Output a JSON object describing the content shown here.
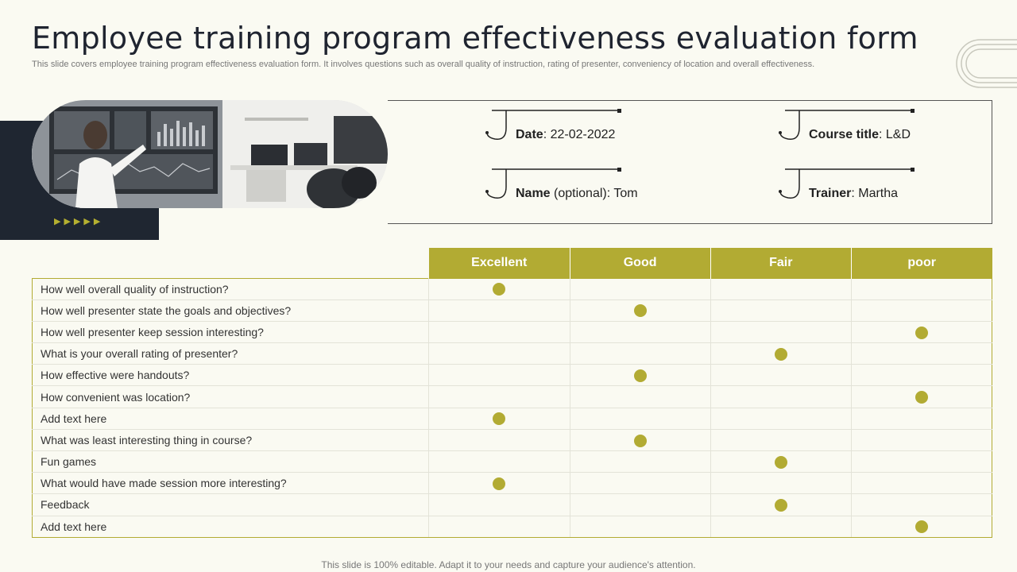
{
  "header": {
    "title": "Employee training program effectiveness evaluation form",
    "subtitle": "This slide covers employee training program effectiveness evaluation form. It involves questions such as  overall quality of instruction, rating of presenter, conveniency of location and overall effectiveness."
  },
  "info": {
    "date_label": "Date",
    "date_value": ": 22-02-2022",
    "course_label": "Course title",
    "course_value": ":  L&D",
    "name_label": "Name",
    "name_optional": " (optional)",
    "name_value": ": Tom",
    "trainer_label": "Trainer",
    "trainer_value": ": Martha"
  },
  "table": {
    "columns": [
      "Excellent",
      "Good",
      "Fair",
      "poor"
    ],
    "rows": [
      {
        "question": "How well overall quality of instruction?",
        "rating": 0
      },
      {
        "question": "How well presenter state the goals and objectives?",
        "rating": 1
      },
      {
        "question": "How well presenter keep session interesting?",
        "rating": 3
      },
      {
        "question": "What is your overall rating of presenter?",
        "rating": 2
      },
      {
        "question": "How effective were handouts?",
        "rating": 1
      },
      {
        "question": "How convenient was location?",
        "rating": 3
      },
      {
        "question": "Add text here",
        "rating": 0
      },
      {
        "question": "What was least interesting thing in course?",
        "rating": 1
      },
      {
        "question": "Fun games",
        "rating": 2
      },
      {
        "question": "What would have made session more interesting?",
        "rating": 0
      },
      {
        "question": "Feedback",
        "rating": 2
      },
      {
        "question": "Add text here",
        "rating": 3
      }
    ]
  },
  "footer": "This slide is 100% editable. Adapt it to your needs and capture your audience's attention.",
  "colors": {
    "accent": "#b2ab33",
    "dark": "#1f2631"
  }
}
